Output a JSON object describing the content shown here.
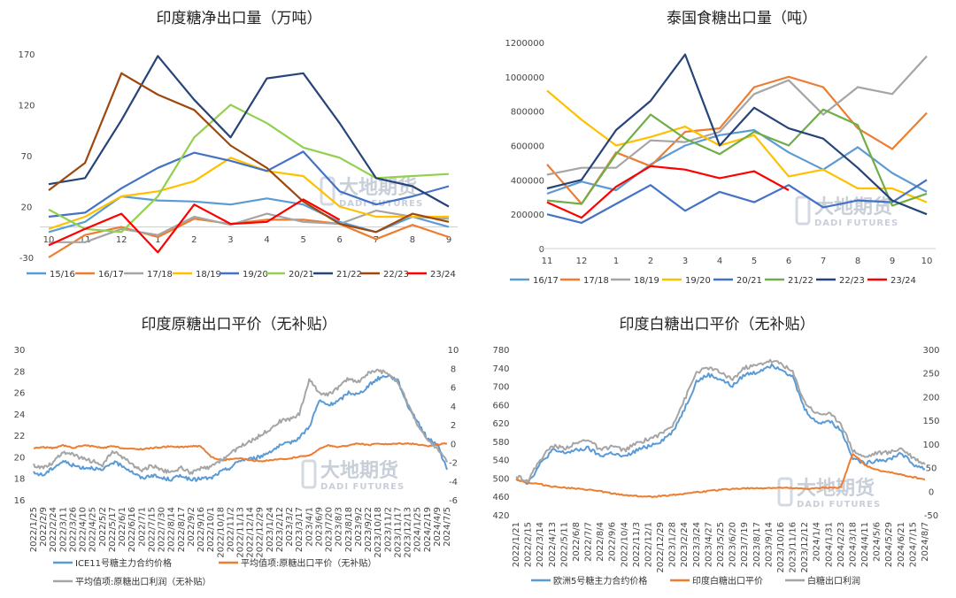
{
  "watermark": {
    "cn": "大地期货",
    "en": "DADI FUTURES"
  },
  "chart_data": [
    {
      "type": "line",
      "title": "印度糖净出口量（万吨）",
      "categories": [
        "10",
        "11",
        "12",
        "1",
        "2",
        "3",
        "4",
        "5",
        "6",
        "7",
        "8",
        "9"
      ],
      "yticks": [
        "170",
        "120",
        "70",
        "20",
        "-30"
      ],
      "ylim": [
        -30,
        170
      ],
      "series": [
        {
          "name": "15/16",
          "color": "#5b9bd5",
          "values": [
            -5,
            5,
            30,
            26,
            25,
            22,
            28,
            22,
            5,
            -5,
            10,
            0
          ]
        },
        {
          "name": "16/17",
          "color": "#ed7d31",
          "values": [
            -30,
            -8,
            0,
            -10,
            8,
            3,
            7,
            7,
            3,
            -12,
            2,
            -10
          ]
        },
        {
          "name": "17/18",
          "color": "#a5a5a5",
          "values": [
            -15,
            -15,
            -2,
            -8,
            10,
            2,
            13,
            5,
            3,
            16,
            10,
            8
          ]
        },
        {
          "name": "18/19",
          "color": "#ffc000",
          "values": [
            -2,
            10,
            30,
            35,
            45,
            68,
            55,
            50,
            20,
            10,
            10,
            10
          ]
        },
        {
          "name": "19/20",
          "color": "#4472c4",
          "values": [
            10,
            14,
            38,
            58,
            73,
            65,
            55,
            74,
            35,
            22,
            30,
            40
          ]
        },
        {
          "name": "20/21",
          "color": "#92d050",
          "values": [
            17,
            -2,
            -5,
            30,
            88,
            120,
            102,
            78,
            68,
            48,
            50,
            52
          ]
        },
        {
          "name": "21/22",
          "color": "#264478",
          "values": [
            42,
            48,
            105,
            168,
            125,
            88,
            146,
            151,
            102,
            48,
            40,
            20
          ]
        },
        {
          "name": "22/23",
          "color": "#9e480e",
          "values": [
            36,
            63,
            151,
            130,
            115,
            80,
            58,
            25,
            3,
            -5,
            13,
            5
          ]
        },
        {
          "name": "23/24",
          "color": "#ff0000",
          "values": [
            -18,
            -2,
            13,
            -25,
            22,
            3,
            5,
            27,
            7,
            null,
            null,
            null
          ]
        }
      ]
    },
    {
      "type": "line",
      "title": "泰国食糖出口量（吨）",
      "categories": [
        "11",
        "12",
        "1",
        "2",
        "3",
        "4",
        "5",
        "6",
        "7",
        "8",
        "9",
        "10"
      ],
      "yticks": [
        "1200000",
        "1000000",
        "800000",
        "600000",
        "400000",
        "200000",
        "0"
      ],
      "ylim": [
        0,
        1200000
      ],
      "series": [
        {
          "name": "16/17",
          "color": "#5b9bd5",
          "values": [
            320000,
            390000,
            340000,
            490000,
            600000,
            660000,
            690000,
            560000,
            460000,
            590000,
            440000,
            330000
          ]
        },
        {
          "name": "17/18",
          "color": "#ed7d31",
          "values": [
            490000,
            260000,
            560000,
            480000,
            680000,
            700000,
            940000,
            1000000,
            940000,
            700000,
            580000,
            790000
          ]
        },
        {
          "name": "18/19",
          "color": "#a5a5a5",
          "values": [
            430000,
            470000,
            470000,
            630000,
            620000,
            680000,
            900000,
            980000,
            780000,
            940000,
            900000,
            1120000
          ]
        },
        {
          "name": "19/20",
          "color": "#ffc000",
          "values": [
            920000,
            750000,
            600000,
            650000,
            710000,
            600000,
            660000,
            420000,
            460000,
            350000,
            350000,
            270000
          ]
        },
        {
          "name": "20/21",
          "color": "#4472c4",
          "values": [
            200000,
            150000,
            260000,
            370000,
            220000,
            330000,
            270000,
            370000,
            240000,
            280000,
            270000,
            400000
          ]
        },
        {
          "name": "21/22",
          "color": "#70ad47",
          "values": [
            280000,
            260000,
            550000,
            780000,
            640000,
            550000,
            680000,
            600000,
            810000,
            720000,
            250000,
            320000
          ]
        },
        {
          "name": "22/23",
          "color": "#264478",
          "values": [
            350000,
            400000,
            690000,
            860000,
            1130000,
            600000,
            820000,
            700000,
            640000,
            470000,
            280000,
            200000
          ]
        },
        {
          "name": "23/24",
          "color": "#ff0000",
          "values": [
            270000,
            180000,
            360000,
            480000,
            460000,
            410000,
            450000,
            340000,
            null,
            null,
            null,
            null
          ]
        }
      ]
    },
    {
      "type": "line",
      "title": "印度原糖出口平价（无补贴）",
      "xticks": [
        "2022/1/25",
        "2022/2/9",
        "2022/2/24",
        "2022/3/11",
        "2022/3/26",
        "2022/4/10",
        "2022/4/25",
        "2022/5/2",
        "2022/5/17",
        "2022/6/1",
        "2022/6/16",
        "2022/7/1",
        "2022/7/15",
        "2022/7/30",
        "2022/8/14",
        "2022/8/17",
        "2022/9/2",
        "2022/9/16",
        "2022/10/1",
        "2022/10/18",
        "2022/11/2",
        "2022/11/13",
        "2022/12/14",
        "2022/12/29",
        "2023/1/24",
        "2023/2/12",
        "2023/3/2",
        "2023/3/17",
        "2023/4/1",
        "2023/6/9",
        "2023/7/20",
        "2023/8/3",
        "2023/8/18",
        "2023/9/2",
        "2023/9/22",
        "2023/10/18",
        "2023/11/2",
        "2023/11/17",
        "2023/12/13",
        "2024/1/25",
        "2024/2/19",
        "2024/4/9",
        "2024/7/5"
      ],
      "ylim_left": [
        16,
        30
      ],
      "ylim_right": [
        -6,
        10
      ],
      "yticks_left": [
        "30",
        "28",
        "26",
        "24",
        "22",
        "20",
        "18",
        "16"
      ],
      "yticks_right": [
        "10",
        "8",
        "6",
        "4",
        "2",
        "0",
        "-2",
        "-4",
        "-6"
      ],
      "series": [
        {
          "name": "ICE11号糖主力合约价格",
          "color": "#5b9bd5",
          "axis": "left",
          "values": [
            18.5,
            18.3,
            19.0,
            19.6,
            19.2,
            19.0,
            19.0,
            18.7,
            19.5,
            19.2,
            18.6,
            18.0,
            18.3,
            18.0,
            17.9,
            18.3,
            17.8,
            18.0,
            18.0,
            18.6,
            19.0,
            19.7,
            19.8,
            20.0,
            20.5,
            21.0,
            21.3,
            21.8,
            22.8,
            25.2,
            24.8,
            25.2,
            26.0,
            25.8,
            26.6,
            27.3,
            27.6,
            27.1,
            24.8,
            23.3,
            21.7,
            21.2,
            18.8
          ]
        },
        {
          "name": "平均值项:原糖出口平价（无补贴）",
          "color": "#ed7d31",
          "axis": "right",
          "values": [
            -0.5,
            -0.4,
            -0.5,
            -0.2,
            -0.5,
            -0.2,
            -0.3,
            -0.5,
            -0.3,
            -0.5,
            -0.6,
            -0.6,
            -0.5,
            -0.4,
            -0.3,
            -0.4,
            -0.3,
            -0.3,
            -1.4,
            -1.8,
            -1.7,
            -1.6,
            -1.8,
            -1.9,
            -1.8,
            -1.7,
            -1.6,
            -1.4,
            -1.3,
            -0.6,
            -0.2,
            -0.4,
            -0.2,
            0.0,
            -0.2,
            0.0,
            -0.1,
            0.0,
            0.0,
            -0.1,
            -0.3,
            -0.1,
            0.0
          ]
        },
        {
          "name": "平均值项:原糖出口利润（无补贴）",
          "color": "#a5a5a5",
          "axis": "left",
          "values": [
            19.2,
            19.0,
            19.5,
            20.5,
            20.2,
            19.8,
            19.6,
            19.2,
            20.5,
            20.0,
            19.3,
            18.7,
            19.2,
            18.8,
            18.5,
            19.0,
            18.5,
            18.9,
            19.0,
            19.7,
            20.3,
            21.0,
            21.4,
            22.0,
            22.6,
            23.3,
            23.5,
            24.0,
            27.2,
            26.0,
            25.8,
            26.5,
            27.3,
            27.0,
            27.8,
            28.0,
            27.8,
            27.0,
            25.0,
            23.0,
            21.5,
            20.8,
            19.5
          ]
        }
      ]
    },
    {
      "type": "line",
      "title": "印度白糖出口平价（无补贴）",
      "xticks": [
        "2022/1/21",
        "2022/2/15",
        "2022/3/14",
        "2022/4/13",
        "2022/5/11",
        "2022/6/8",
        "2022/7/7",
        "2022/8/4",
        "2022/9/6",
        "2022/10/4",
        "2022/11/3",
        "2022/12/1",
        "2022/12/29",
        "2023/1/28",
        "2023/2/24",
        "2023/3/24",
        "2023/4/27",
        "2023/5/25",
        "2023/6/20",
        "2023/7/19",
        "2023/8/17",
        "2023/9/14",
        "2023/10/16",
        "2023/11/16",
        "2023/12/12",
        "2024/1/4",
        "2024/1/31",
        "2024/2/23",
        "2024/3/18",
        "2024/4/11",
        "2024/5/6",
        "2024/5/29",
        "2024/6/21",
        "2024/7/15",
        "2024/8/7"
      ],
      "ylim_left": [
        420,
        780
      ],
      "ylim_right": [
        -50,
        300
      ],
      "yticks_left": [
        "780",
        "740",
        "700",
        "660",
        "620",
        "580",
        "540",
        "500",
        "460",
        "420"
      ],
      "yticks_right": [
        "300",
        "250",
        "200",
        "150",
        "100",
        "50",
        "0",
        "-50"
      ],
      "series": [
        {
          "name": "欧洲5号糖主力合约价格",
          "color": "#5b9bd5",
          "axis": "left",
          "values": [
            500,
            490,
            530,
            560,
            555,
            560,
            565,
            548,
            555,
            545,
            560,
            570,
            580,
            600,
            650,
            710,
            725,
            715,
            700,
            725,
            730,
            745,
            740,
            720,
            650,
            620,
            625,
            605,
            545,
            530,
            540,
            540,
            555,
            530,
            520
          ]
        },
        {
          "name": "印度白糖出口平价",
          "color": "#ed7d31",
          "axis": "right",
          "values": [
            25,
            18,
            15,
            10,
            8,
            5,
            3,
            0,
            -5,
            -8,
            -10,
            -12,
            -10,
            -8,
            -5,
            -2,
            0,
            3,
            5,
            6,
            6,
            7,
            7,
            6,
            5,
            6,
            8,
            8,
            80,
            55,
            45,
            40,
            35,
            30,
            25
          ]
        },
        {
          "name": "白糖出口利润",
          "color": "#a5a5a5",
          "axis": "left",
          "values": [
            505,
            495,
            540,
            570,
            565,
            575,
            585,
            560,
            570,
            560,
            575,
            585,
            595,
            615,
            670,
            730,
            740,
            730,
            715,
            740,
            745,
            755,
            750,
            730,
            665,
            640,
            640,
            620,
            560,
            545,
            555,
            555,
            565,
            545,
            530
          ]
        }
      ]
    }
  ]
}
